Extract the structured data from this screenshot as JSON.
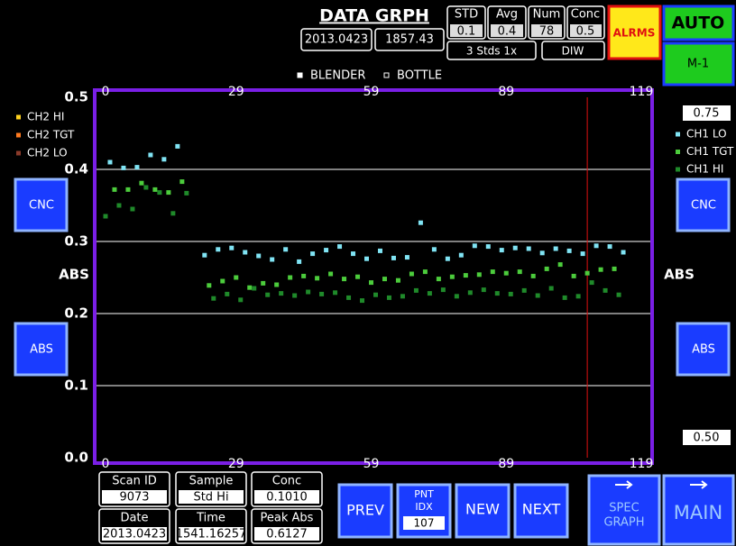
{
  "header": {
    "title": "DATA GRPH",
    "date": "2013.0423",
    "time": "1857.43"
  },
  "stats": {
    "headers": [
      "STD",
      "Avg",
      "Num",
      "Conc"
    ],
    "values": [
      "0.1",
      "0.4",
      "78",
      "0.5"
    ],
    "standards": "3 Stds 1x",
    "sample_type": "DIW"
  },
  "status": {
    "alarms": "ALRMS",
    "mode": "AUTO",
    "method": "M-1"
  },
  "side": {
    "left_buttons": [
      "CNC",
      "ABS"
    ],
    "right_buttons": [
      "CNC",
      "ABS"
    ],
    "right_scale_top": "0.75",
    "right_scale_bottom": "0.50"
  },
  "info": [
    {
      "label": "Scan ID",
      "value": "9073"
    },
    {
      "label": "Sample",
      "value": "Std Hi"
    },
    {
      "label": "Conc",
      "value": "0.1010"
    },
    {
      "label": "Date",
      "value": "2013.0423"
    },
    {
      "label": "Time",
      "value": "1541.16257"
    },
    {
      "label": "Peak Abs",
      "value": "0.6127"
    }
  ],
  "controls": {
    "prev": "PREV",
    "pnt_idx_label": [
      "PNT",
      "IDX"
    ],
    "pnt_idx_value": "107",
    "new": "NEW",
    "next": "NEXT",
    "spec_graph": [
      "SPEC",
      "GRAPH"
    ],
    "main": "MAIN"
  },
  "chart_data": {
    "type": "scatter",
    "y_label": "ABS",
    "xlim": [
      -2,
      121
    ],
    "xticks": [
      0,
      29,
      59,
      89,
      119
    ],
    "ylim": [
      0,
      0.5
    ],
    "yticks": [
      0.5,
      0.4,
      0.3,
      0.2,
      0.1,
      {
        "value": 0,
        "label": "0.0"
      }
    ],
    "grid": true,
    "cursor": 107,
    "top_legend": [
      {
        "name": "BLENDER",
        "color": "#ffffff"
      },
      {
        "name": "BOTTLE",
        "color": "#000000"
      }
    ],
    "legend_left": [
      {
        "name": "CH2 HI",
        "color": "#ffd21f"
      },
      {
        "name": "CH2 TGT",
        "color": "#ff7a1f"
      },
      {
        "name": "CH2 LO",
        "color": "#8a3a2a"
      }
    ],
    "series": [
      {
        "name": "CH1 LO",
        "color": "#80e4f4",
        "x": [
          1,
          4,
          7,
          10,
          13,
          16,
          22,
          25,
          28,
          31,
          34,
          37,
          40,
          43,
          46,
          49,
          52,
          55,
          58,
          61,
          64,
          67,
          70,
          73,
          76,
          79,
          82,
          85,
          88,
          91,
          94,
          97,
          100,
          103,
          106,
          109,
          112,
          115
        ],
        "values": [
          0.41,
          0.402,
          0.403,
          0.42,
          0.414,
          0.432,
          0.281,
          0.289,
          0.291,
          0.285,
          0.28,
          0.275,
          0.289,
          0.272,
          0.283,
          0.288,
          0.293,
          0.283,
          0.276,
          0.287,
          0.277,
          0.278,
          0.326,
          0.289,
          0.276,
          0.281,
          0.294,
          0.293,
          0.288,
          0.291,
          0.29,
          0.284,
          0.29,
          0.287,
          0.283,
          0.294,
          0.293,
          0.285
        ]
      },
      {
        "name": "CH1 TGT",
        "color": "#4ccc3c",
        "x": [
          2,
          5,
          8,
          11,
          14,
          17,
          23,
          26,
          29,
          32,
          35,
          38,
          41,
          44,
          47,
          50,
          53,
          56,
          59,
          62,
          65,
          68,
          71,
          74,
          77,
          80,
          83,
          86,
          89,
          92,
          95,
          98,
          101,
          104,
          107,
          110,
          113
        ],
        "values": [
          0.372,
          0.372,
          0.381,
          0.372,
          0.368,
          0.383,
          0.239,
          0.245,
          0.25,
          0.236,
          0.242,
          0.24,
          0.25,
          0.252,
          0.249,
          0.255,
          0.248,
          0.251,
          0.243,
          0.248,
          0.246,
          0.255,
          0.258,
          0.248,
          0.251,
          0.253,
          0.254,
          0.258,
          0.256,
          0.258,
          0.252,
          0.262,
          0.268,
          0.252,
          0.256,
          0.261,
          0.262
        ]
      },
      {
        "name": "CH1 HI",
        "color": "#1f8a2a",
        "x": [
          0,
          3,
          6,
          9,
          12,
          15,
          18,
          24,
          27,
          30,
          33,
          36,
          39,
          42,
          45,
          48,
          51,
          54,
          57,
          60,
          63,
          66,
          69,
          72,
          75,
          78,
          81,
          84,
          87,
          90,
          93,
          96,
          99,
          102,
          105,
          108,
          111,
          114
        ],
        "values": [
          0.335,
          0.35,
          0.345,
          0.375,
          0.368,
          0.339,
          0.367,
          0.221,
          0.227,
          0.219,
          0.235,
          0.226,
          0.228,
          0.225,
          0.23,
          0.227,
          0.229,
          0.222,
          0.218,
          0.226,
          0.222,
          0.224,
          0.232,
          0.228,
          0.233,
          0.224,
          0.229,
          0.233,
          0.228,
          0.227,
          0.232,
          0.225,
          0.235,
          0.222,
          0.224,
          0.243,
          0.232,
          0.226
        ]
      }
    ]
  }
}
